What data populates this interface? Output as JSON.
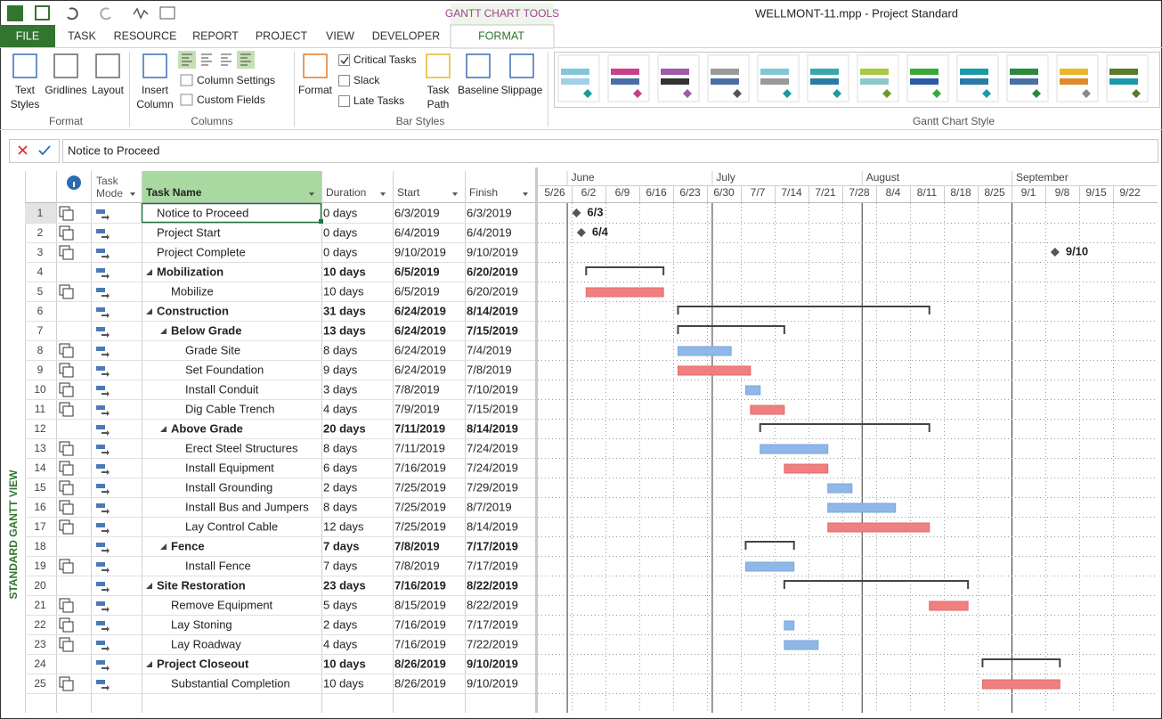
{
  "title_bar": {
    "tools_tab": "GANTT CHART TOOLS",
    "document": "WELLMONT-11.mpp - Project Standard"
  },
  "tabs": [
    "FILE",
    "TASK",
    "RESOURCE",
    "REPORT",
    "PROJECT",
    "VIEW",
    "DEVELOPER",
    "FORMAT"
  ],
  "ribbon": {
    "groups": [
      {
        "label": "Format",
        "buttons": [
          {
            "lines": [
              "Text",
              "Styles"
            ]
          },
          {
            "lines": [
              "Gridlines"
            ]
          },
          {
            "lines": [
              "Layout"
            ]
          }
        ]
      },
      {
        "label": "Columns",
        "buttons": [
          {
            "lines": [
              "Insert",
              "Column"
            ]
          }
        ],
        "items": [
          "Column Settings",
          "Custom Fields"
        ]
      },
      {
        "label": "Bar Styles",
        "buttons": [
          {
            "lines": [
              "Format"
            ]
          },
          {
            "lines": [
              "Task",
              "Path"
            ]
          },
          {
            "lines": [
              "Baseline"
            ]
          },
          {
            "lines": [
              "Slippage"
            ]
          }
        ],
        "checks": [
          {
            "label": "Critical Tasks",
            "checked": true
          },
          {
            "label": "Slack",
            "checked": false
          },
          {
            "label": "Late Tasks",
            "checked": false
          }
        ]
      },
      {
        "label": "Gantt Chart Style"
      }
    ]
  },
  "entry_bar": {
    "text": "Notice to Proceed"
  },
  "side_label": "STANDARD GANTT VIEW",
  "table": {
    "mode_header": [
      "Task",
      "Mode"
    ],
    "headers": [
      "Task Name",
      "Duration",
      "Start",
      "Finish"
    ],
    "rows": [
      {
        "id": 1,
        "name": "Notice to Proceed",
        "duration": "0 days",
        "start": "6/3/2019",
        "finish": "6/3/2019",
        "level": 0,
        "summary": false,
        "critical": false,
        "milestone": "6/3"
      },
      {
        "id": 2,
        "name": "Project Start",
        "duration": "0 days",
        "start": "6/4/2019",
        "finish": "6/4/2019",
        "level": 0,
        "summary": false,
        "critical": false,
        "milestone": "6/4"
      },
      {
        "id": 3,
        "name": "Project Complete",
        "duration": "0 days",
        "start": "9/10/2019",
        "finish": "9/10/2019",
        "level": 0,
        "summary": false,
        "critical": false,
        "milestone": "9/10"
      },
      {
        "id": 4,
        "name": "Mobilization",
        "duration": "10 days",
        "start": "6/5/2019",
        "finish": "6/20/2019",
        "level": 0,
        "summary": true,
        "critical": false
      },
      {
        "id": 5,
        "name": "Mobilize",
        "duration": "10 days",
        "start": "6/5/2019",
        "finish": "6/20/2019",
        "level": 1,
        "summary": false,
        "critical": true
      },
      {
        "id": 6,
        "name": "Construction",
        "duration": "31 days",
        "start": "6/24/2019",
        "finish": "8/14/2019",
        "level": 0,
        "summary": true,
        "critical": false
      },
      {
        "id": 7,
        "name": "Below Grade",
        "duration": "13 days",
        "start": "6/24/2019",
        "finish": "7/15/2019",
        "level": 1,
        "summary": true,
        "critical": false
      },
      {
        "id": 8,
        "name": "Grade Site",
        "duration": "8 days",
        "start": "6/24/2019",
        "finish": "7/4/2019",
        "level": 2,
        "summary": false,
        "critical": false
      },
      {
        "id": 9,
        "name": "Set Foundation",
        "duration": "9 days",
        "start": "6/24/2019",
        "finish": "7/8/2019",
        "level": 2,
        "summary": false,
        "critical": true
      },
      {
        "id": 10,
        "name": "Install Conduit",
        "duration": "3 days",
        "start": "7/8/2019",
        "finish": "7/10/2019",
        "level": 2,
        "summary": false,
        "critical": false
      },
      {
        "id": 11,
        "name": "Dig Cable Trench",
        "duration": "4 days",
        "start": "7/9/2019",
        "finish": "7/15/2019",
        "level": 2,
        "summary": false,
        "critical": true
      },
      {
        "id": 12,
        "name": "Above Grade",
        "duration": "20 days",
        "start": "7/11/2019",
        "finish": "8/14/2019",
        "level": 1,
        "summary": true,
        "critical": false
      },
      {
        "id": 13,
        "name": "Erect Steel Structures",
        "duration": "8 days",
        "start": "7/11/2019",
        "finish": "7/24/2019",
        "level": 2,
        "summary": false,
        "critical": false
      },
      {
        "id": 14,
        "name": "Install Equipment",
        "duration": "6 days",
        "start": "7/16/2019",
        "finish": "7/24/2019",
        "level": 2,
        "summary": false,
        "critical": true
      },
      {
        "id": 15,
        "name": "Install Grounding",
        "duration": "2 days",
        "start": "7/25/2019",
        "finish": "7/29/2019",
        "level": 2,
        "summary": false,
        "critical": false
      },
      {
        "id": 16,
        "name": "Install Bus and Jumpers",
        "duration": "8 days",
        "start": "7/25/2019",
        "finish": "8/7/2019",
        "level": 2,
        "summary": false,
        "critical": false
      },
      {
        "id": 17,
        "name": "Lay Control Cable",
        "duration": "12 days",
        "start": "7/25/2019",
        "finish": "8/14/2019",
        "level": 2,
        "summary": false,
        "critical": true
      },
      {
        "id": 18,
        "name": "Fence",
        "duration": "7 days",
        "start": "7/8/2019",
        "finish": "7/17/2019",
        "level": 1,
        "summary": true,
        "critical": false
      },
      {
        "id": 19,
        "name": "Install Fence",
        "duration": "7 days",
        "start": "7/8/2019",
        "finish": "7/17/2019",
        "level": 2,
        "summary": false,
        "critical": false
      },
      {
        "id": 20,
        "name": "Site Restoration",
        "duration": "23 days",
        "start": "7/16/2019",
        "finish": "8/22/2019",
        "level": 0,
        "summary": true,
        "critical": false
      },
      {
        "id": 21,
        "name": "Remove Equipment",
        "duration": "5 days",
        "start": "8/15/2019",
        "finish": "8/22/2019",
        "level": 1,
        "summary": false,
        "critical": true
      },
      {
        "id": 22,
        "name": "Lay Stoning",
        "duration": "2 days",
        "start": "7/16/2019",
        "finish": "7/17/2019",
        "level": 1,
        "summary": false,
        "critical": false
      },
      {
        "id": 23,
        "name": "Lay Roadway",
        "duration": "4 days",
        "start": "7/16/2019",
        "finish": "7/22/2019",
        "level": 1,
        "summary": false,
        "critical": false
      },
      {
        "id": 24,
        "name": "Project Closeout",
        "duration": "10 days",
        "start": "8/26/2019",
        "finish": "9/10/2019",
        "level": 0,
        "summary": true,
        "critical": false
      },
      {
        "id": 25,
        "name": "Substantial Completion",
        "duration": "10 days",
        "start": "8/26/2019",
        "finish": "9/10/2019",
        "level": 1,
        "summary": false,
        "critical": true
      }
    ]
  },
  "timescale": {
    "months": [
      "June",
      "July",
      "August",
      "September"
    ],
    "weeks": [
      "5/26",
      "6/2",
      "6/9",
      "6/16",
      "6/23",
      "6/30",
      "7/7",
      "7/14",
      "7/21",
      "7/28",
      "8/4",
      "8/11",
      "8/18",
      "8/25",
      "9/1",
      "9/8",
      "9/15",
      "9/22"
    ]
  }
}
